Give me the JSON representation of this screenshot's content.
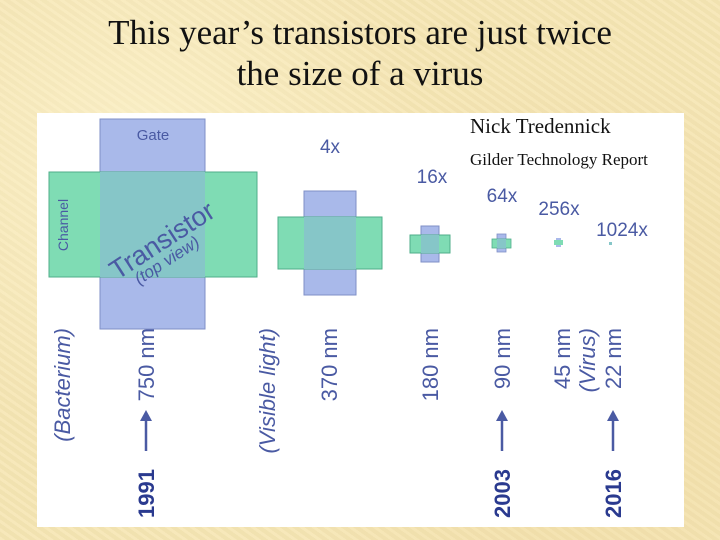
{
  "slide": {
    "title_line1": "This year’s transistors are just twice",
    "title_line2": "the size of a virus",
    "author": "Nick Tredennick",
    "source": "Gilder Technology Report"
  },
  "diagram": {
    "gate_label": "Gate",
    "channel_label": "Channel",
    "transistor_label": "Transistor",
    "top_view_label": "(top view)",
    "scales": [
      "4x",
      "16x",
      "64x",
      "256x",
      "1024x"
    ],
    "axis": [
      {
        "text": "(Bacterium)",
        "style": "italic"
      },
      {
        "text": "750 nm",
        "year": "1991"
      },
      {
        "text": "(Visible light)",
        "style": "italic"
      },
      {
        "text": "370 nm"
      },
      {
        "text": "180 nm"
      },
      {
        "text": "90 nm",
        "year": "2003"
      },
      {
        "text": "45 nm"
      },
      {
        "text": "(Virus)",
        "style": "italic"
      },
      {
        "text": "22 nm",
        "year": "2016"
      }
    ],
    "colors": {
      "gate": "#a9b9ea",
      "channel": "#7fdcb4",
      "overlap": "#86c6c8",
      "label": "#4a5aa3",
      "year": "#2a3a8f"
    }
  }
}
